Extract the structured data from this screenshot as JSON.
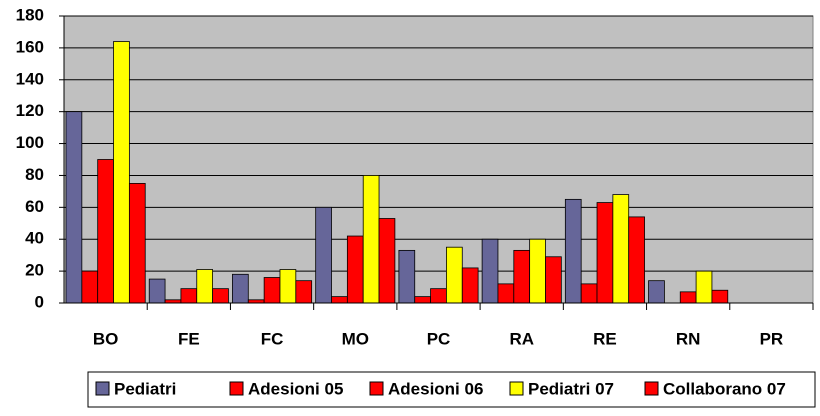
{
  "chart_data": {
    "type": "bar",
    "categories": [
      "BO",
      "FE",
      "FC",
      "MO",
      "PC",
      "RA",
      "RE",
      "RN",
      "PR"
    ],
    "series": [
      {
        "name": "Pediatri",
        "color": "#666699",
        "values": [
          120,
          15,
          18,
          60,
          33,
          40,
          65,
          14,
          0
        ]
      },
      {
        "name": "Adesioni 05",
        "color": "#ff0000",
        "values": [
          20,
          2,
          2,
          4,
          4,
          12,
          12,
          0,
          0
        ]
      },
      {
        "name": "Adesioni 06",
        "color": "#ff0000",
        "values": [
          90,
          9,
          16,
          42,
          9,
          33,
          63,
          7,
          0
        ]
      },
      {
        "name": "Pediatri 07",
        "color": "#ffff00",
        "values": [
          164,
          21,
          21,
          80,
          35,
          40,
          68,
          20,
          0
        ]
      },
      {
        "name": "Collaborano 07",
        "color": "#ff0000",
        "values": [
          75,
          9,
          14,
          53,
          22,
          29,
          54,
          8,
          0
        ]
      }
    ],
    "ylim": [
      0,
      180
    ],
    "yticks": [
      0,
      20,
      40,
      60,
      80,
      100,
      120,
      140,
      160,
      180
    ],
    "grid": true,
    "legend": "bottom",
    "background": "#c0c0c0"
  }
}
